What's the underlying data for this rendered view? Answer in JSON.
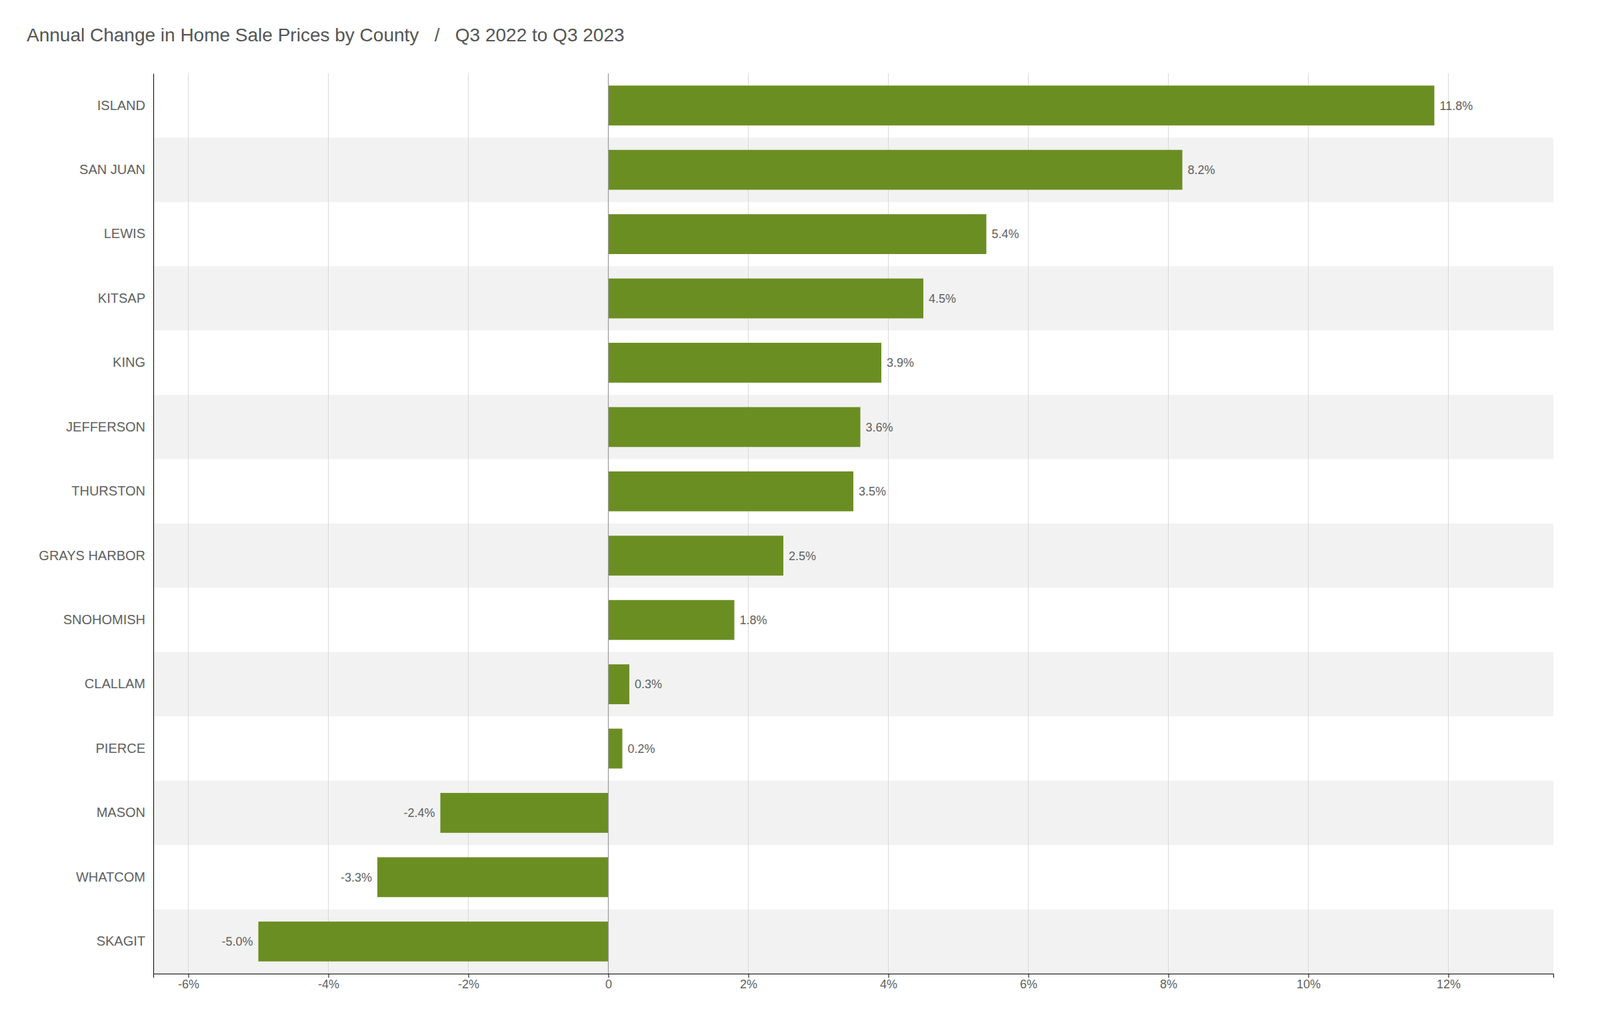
{
  "chart_data": {
    "type": "bar",
    "orientation": "horizontal",
    "title": "Annual Change in Home Sale Prices by County   /   Q3 2022 to Q3 2023",
    "categories": [
      "ISLAND",
      "SAN JUAN",
      "LEWIS",
      "KITSAP",
      "KING",
      "JEFFERSON",
      "THURSTON",
      "GRAYS HARBOR",
      "SNOHOMISH",
      "CLALLAM",
      "PIERCE",
      "MASON",
      "WHATCOM",
      "SKAGIT"
    ],
    "values": [
      11.8,
      8.2,
      5.4,
      4.5,
      3.9,
      3.6,
      3.5,
      2.5,
      1.8,
      0.3,
      0.2,
      -2.4,
      -3.3,
      -5.0
    ],
    "value_labels": [
      "11.8%",
      "8.2%",
      "5.4%",
      "4.5%",
      "3.9%",
      "3.6%",
      "3.5%",
      "2.5%",
      "1.8%",
      "0.3%",
      "0.2%",
      "-2.4%",
      "-3.3%",
      "-5.0%"
    ],
    "data_labels": true,
    "color": "#6b8e23",
    "xlim": [
      -6.5,
      13.5
    ],
    "xticks": [
      {
        "value": -6,
        "label": "-6%"
      },
      {
        "value": -4,
        "label": "-4%"
      },
      {
        "value": -2,
        "label": "-2%"
      },
      0,
      {
        "value": 2,
        "label": "2%"
      },
      {
        "value": 4,
        "label": "4%"
      },
      {
        "value": 6,
        "label": "6%"
      },
      {
        "value": 8,
        "label": "8%"
      },
      {
        "value": 10,
        "label": "10%"
      },
      {
        "value": 12,
        "label": "12%"
      }
    ],
    "grid": true
  }
}
